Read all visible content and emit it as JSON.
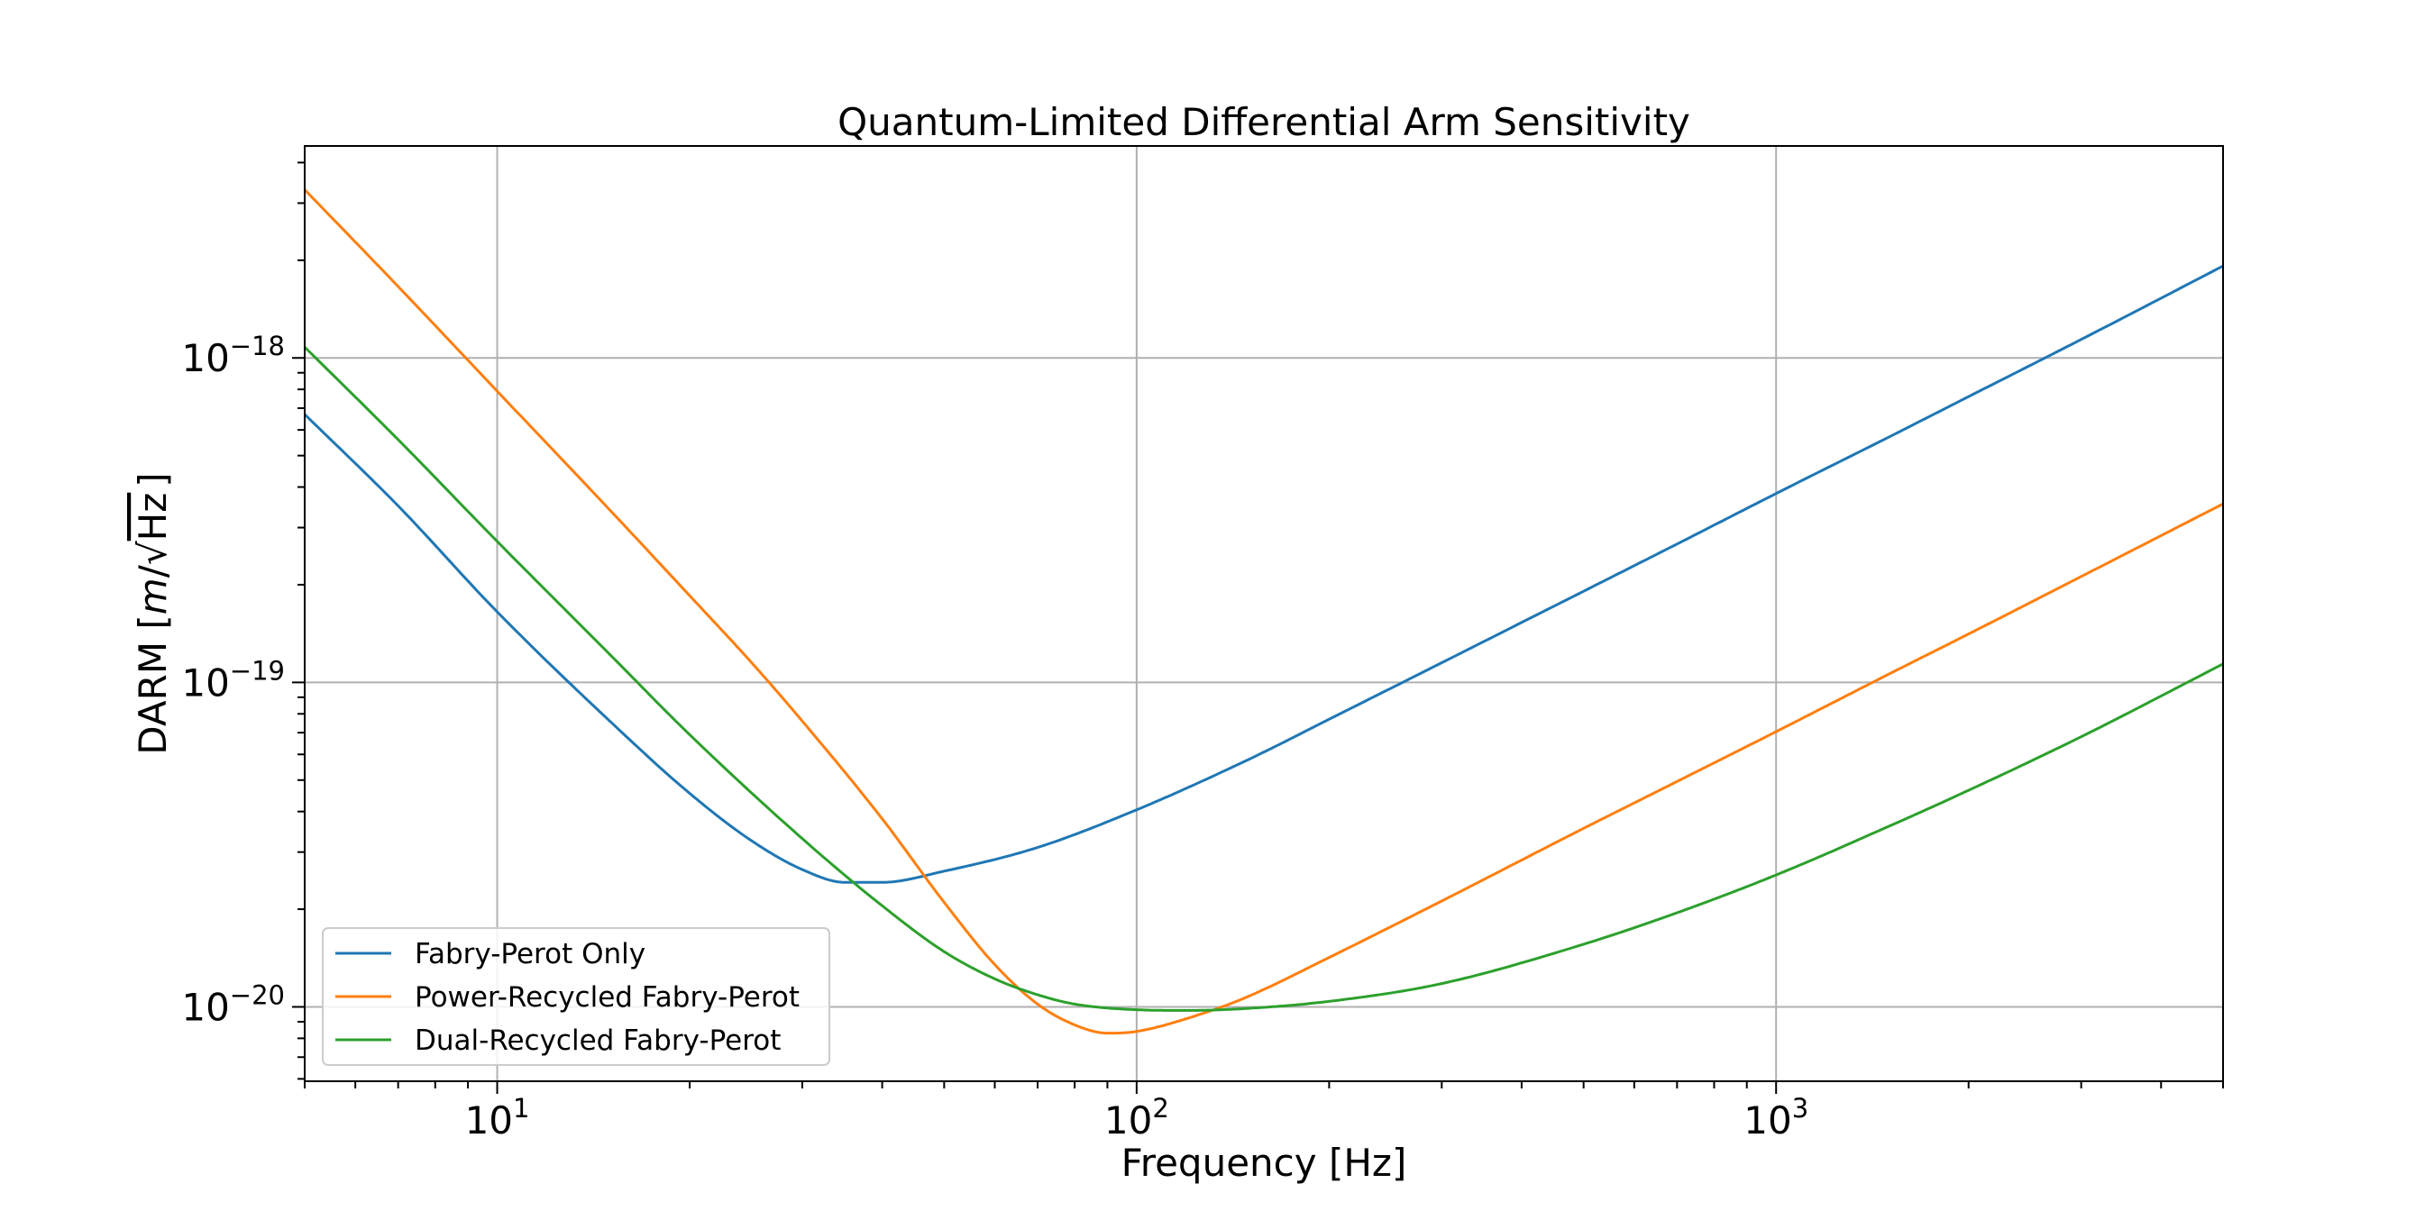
{
  "chart_data": {
    "type": "line",
    "title": "Quantum-Limited Differential Arm Sensitivity",
    "xlabel": "Frequency [Hz]",
    "ylabel": {
      "prefix": "DARM [",
      "m": "m",
      "slash": "/",
      "sqrt": "√",
      "hz": "Hz",
      "suffix": "]"
    },
    "xscale": "log",
    "yscale": "log",
    "xlim": [
      5,
      5000
    ],
    "ylim": [
      5.9e-21,
      4.5e-18
    ],
    "grid": true,
    "legend_position": "lower-left",
    "xticks": [
      {
        "value": 10,
        "base": "10",
        "exp": "1"
      },
      {
        "value": 100,
        "base": "10",
        "exp": "2"
      },
      {
        "value": 1000,
        "base": "10",
        "exp": "3"
      }
    ],
    "yticks": [
      {
        "value": 1e-20,
        "base": "10",
        "exp": "−20"
      },
      {
        "value": 1e-19,
        "base": "10",
        "exp": "−19"
      },
      {
        "value": 1e-18,
        "base": "10",
        "exp": "−18"
      }
    ],
    "series": [
      {
        "name": "Fabry-Perot Only",
        "color": "#1f77b4",
        "x": [
          5,
          7,
          10,
          15,
          20,
          25,
          30,
          35,
          40,
          50,
          70,
          100,
          150,
          200,
          300,
          500,
          700,
          1000,
          1500,
          2000,
          3000,
          5000
        ],
        "y": [
          6.7e-19,
          3.5e-19,
          1.65e-19,
          7.6e-20,
          4.55e-20,
          3.25e-20,
          2.65e-20,
          2.42e-20,
          2.42e-20,
          2.62e-20,
          3.1e-20,
          4.05e-20,
          5.8e-20,
          7.7e-20,
          1.15e-19,
          1.91e-19,
          2.67e-19,
          3.82e-19,
          5.7e-19,
          7.6e-19,
          1.14e-18,
          1.92e-18
        ]
      },
      {
        "name": "Power-Recycled Fabry-Perot",
        "color": "#ff7f0e",
        "x": [
          5,
          7,
          10,
          15,
          20,
          25,
          30,
          40,
          50,
          60,
          70,
          80,
          90,
          100,
          130,
          150,
          200,
          300,
          500,
          700,
          1000,
          1500,
          2000,
          3000,
          5000
        ],
        "y": [
          3.3e-18,
          1.66e-18,
          7.9e-19,
          3.4e-19,
          1.85e-19,
          1.15e-19,
          7.6e-20,
          3.8e-20,
          2.1e-20,
          1.35e-20,
          1.02e-20,
          8.8e-21,
          8.3e-21,
          8.4e-21,
          9.7e-21,
          1.08e-20,
          1.42e-20,
          2.12e-20,
          3.55e-20,
          4.95e-20,
          7.05e-20,
          1.06e-19,
          1.41e-19,
          2.12e-19,
          3.55e-19
        ]
      },
      {
        "name": "Dual-Recycled Fabry-Perot",
        "color": "#2ca02c",
        "x": [
          5,
          7,
          10,
          15,
          20,
          30,
          40,
          50,
          60,
          70,
          80,
          100,
          120,
          150,
          200,
          300,
          500,
          700,
          1000,
          1500,
          2000,
          3000,
          5000
        ],
        "y": [
          1.08e-18,
          5.6e-19,
          2.72e-19,
          1.22e-19,
          6.9e-20,
          3.3e-20,
          2.05e-20,
          1.48e-20,
          1.22e-20,
          1.09e-20,
          1.02e-20,
          9.8e-21,
          9.75e-21,
          9.9e-21,
          1.04e-20,
          1.18e-20,
          1.56e-20,
          1.95e-20,
          2.55e-20,
          3.6e-20,
          4.65e-20,
          6.8e-20,
          1.14e-19
        ]
      }
    ]
  }
}
